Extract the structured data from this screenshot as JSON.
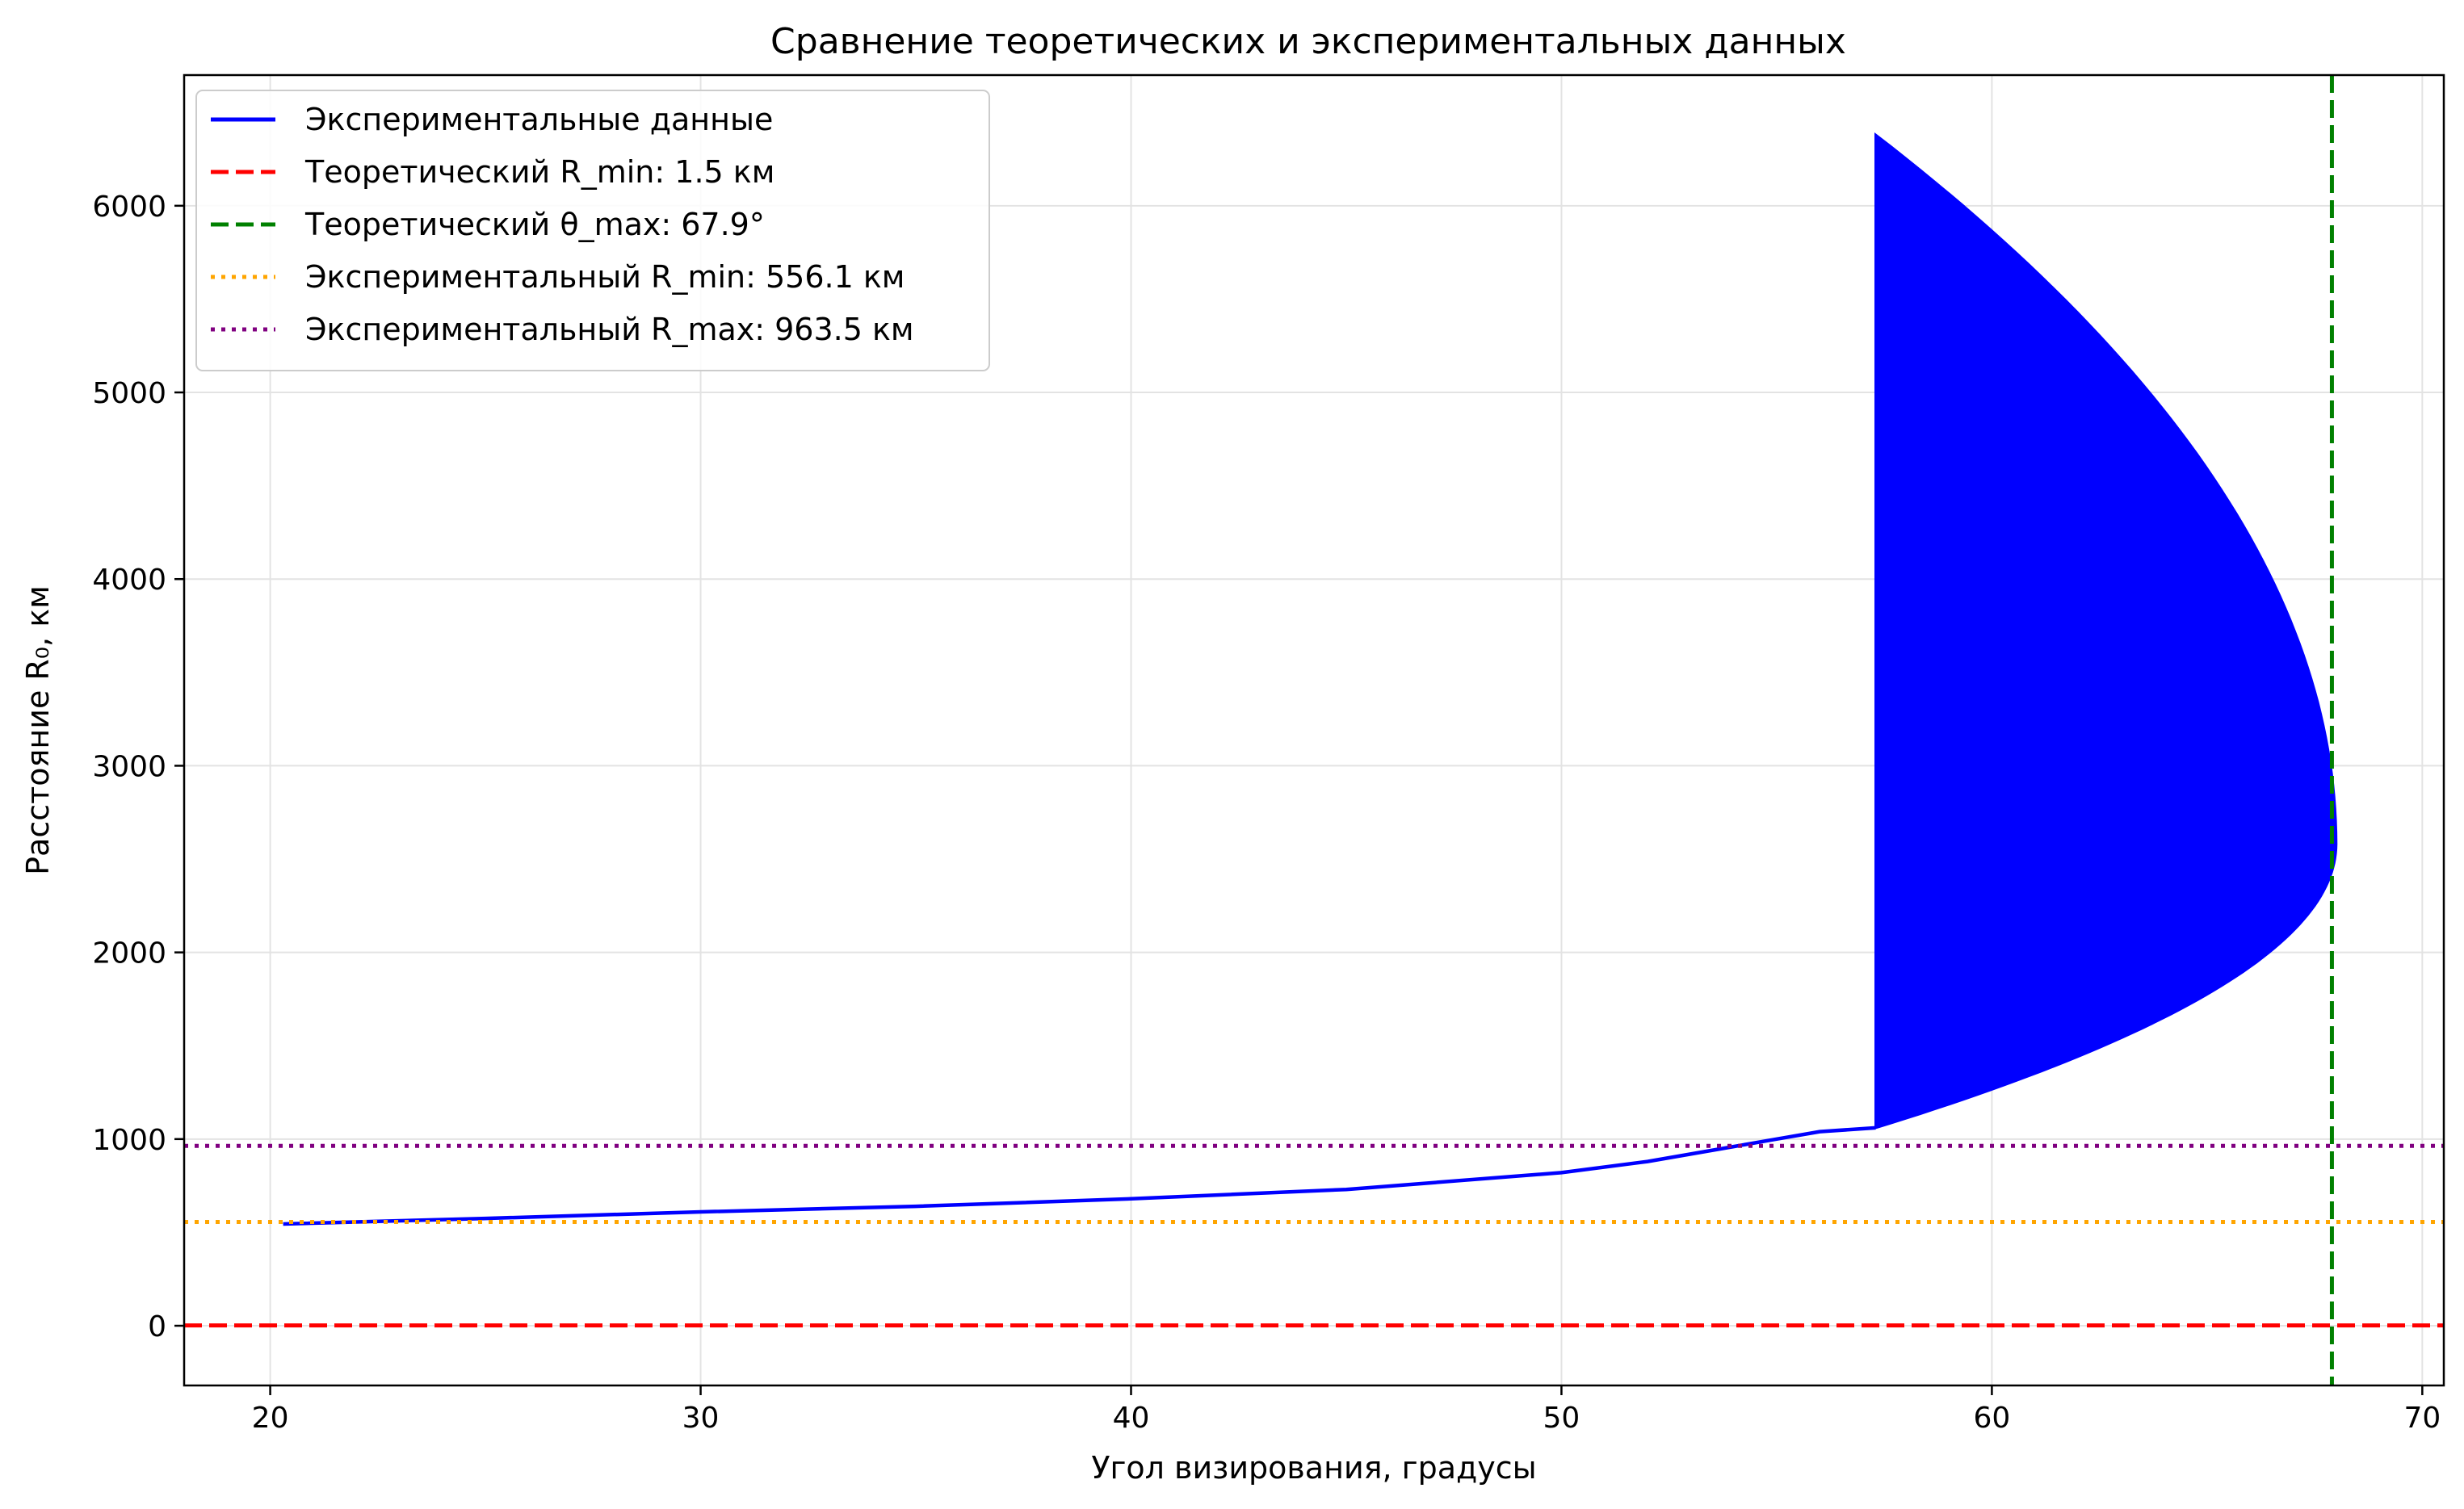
{
  "chart_data": {
    "type": "line",
    "title": "Сравнение теоретических и экспериментальных данных",
    "xlabel": "Угол визирования, градусы",
    "ylabel": "Расстояние R₀, км",
    "xlim": [
      18,
      70.5
    ],
    "ylim": [
      -320,
      6700
    ],
    "x_ticks": [
      20,
      30,
      40,
      50,
      60,
      70
    ],
    "y_ticks": [
      0,
      1000,
      2000,
      3000,
      4000,
      5000,
      6000
    ],
    "grid": true,
    "legend_position": "top-left",
    "series": [
      {
        "name": "Экспериментальные данные",
        "color": "#0000ff",
        "style": "solid",
        "x": [
          20.3,
          25,
          30,
          35,
          40,
          45,
          50,
          52,
          54,
          55,
          56,
          57.3
        ],
        "y": [
          545,
          575,
          610,
          640,
          680,
          730,
          820,
          880,
          960,
          1000,
          1040,
          1060
        ],
        "band": {
          "x_start": 57.3,
          "top_start": 6380,
          "bottom_start": 1060,
          "peak_x": 68.0,
          "peak_y": 2580
        }
      },
      {
        "name": "Теоретический R_min: 1.5 км",
        "color": "#ff0000",
        "style": "dashed",
        "orientation": "horizontal",
        "value": 1.5
      },
      {
        "name": "Теоретический θ_max: 67.9°",
        "color": "#008000",
        "style": "dashed",
        "orientation": "vertical",
        "value": 67.9
      },
      {
        "name": "Экспериментальный R_min: 556.1 км",
        "color": "#ffa500",
        "style": "dotted",
        "orientation": "horizontal",
        "value": 556.1
      },
      {
        "name": "Экспериментальный R_max: 963.5 км",
        "color": "#800080",
        "style": "dotted",
        "orientation": "horizontal",
        "value": 963.5
      }
    ]
  }
}
